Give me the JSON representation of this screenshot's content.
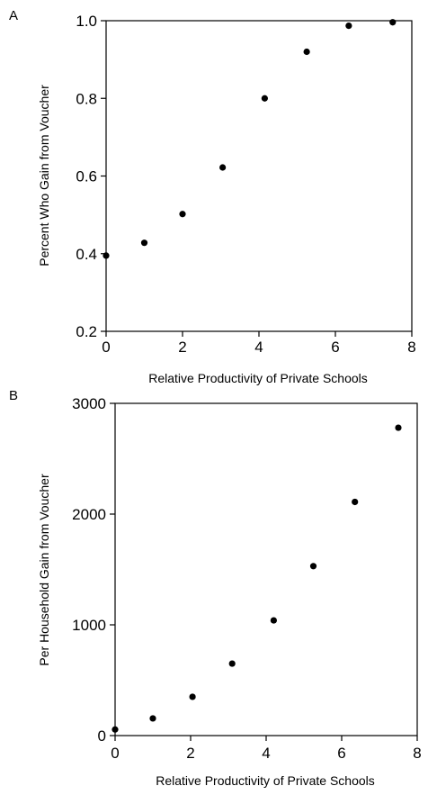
{
  "chart_data": [
    {
      "type": "scatter",
      "panel_label": "A",
      "x": [
        0,
        1,
        2,
        3.05,
        4.15,
        5.25,
        6.35,
        7.5
      ],
      "y": [
        0.395,
        0.428,
        0.502,
        0.622,
        0.8,
        0.92,
        0.987,
        0.996
      ],
      "xlabel": "Relative Productivity of Private Schools",
      "ylabel": "Percent Who Gain from Voucher",
      "xlim": [
        0,
        8
      ],
      "ylim": [
        0.2,
        1.0
      ],
      "xticks": [
        0,
        2,
        4,
        6,
        8
      ],
      "yticks": [
        0.2,
        0.4,
        0.6,
        0.8,
        1.0
      ],
      "xtick_labels": [
        "0",
        "2",
        "4",
        "6",
        "8"
      ],
      "ytick_labels": [
        "0.2",
        "0.4",
        "0.6",
        "0.8",
        "1.0"
      ],
      "grid": false
    },
    {
      "type": "scatter",
      "panel_label": "B",
      "x": [
        0,
        1,
        2.05,
        3.1,
        4.2,
        5.25,
        6.35,
        7.5
      ],
      "y": [
        55,
        155,
        350,
        650,
        1040,
        1530,
        2110,
        2780
      ],
      "xlabel": "Relative Productivity of Private Schools",
      "ylabel": "Per Household Gain from Voucher",
      "xlim": [
        0,
        8
      ],
      "ylim": [
        0,
        3000
      ],
      "xticks": [
        0,
        2,
        4,
        6,
        8
      ],
      "yticks": [
        0,
        1000,
        2000,
        3000
      ],
      "xtick_labels": [
        "0",
        "2",
        "4",
        "6",
        "8"
      ],
      "ytick_labels": [
        "0",
        "1000",
        "2000",
        "3000"
      ],
      "grid": false
    }
  ]
}
